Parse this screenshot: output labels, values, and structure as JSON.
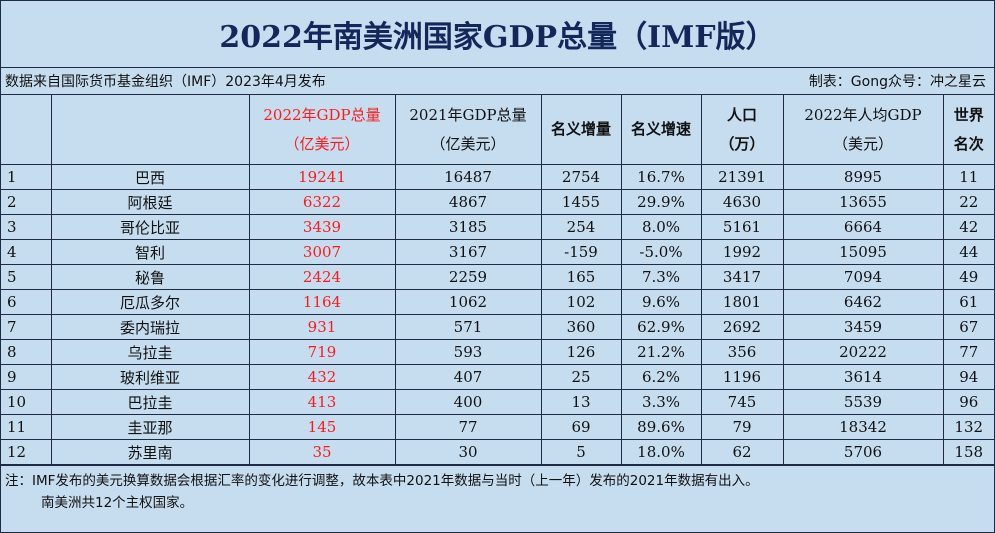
{
  "title": "2022年南美洲国家GDP总量（IMF版）",
  "source_left": "数据来自国际货币基金组织（IMF）2023年4月发布",
  "source_right": "制表：Gong众号：冲之星云",
  "headers": {
    "idx": "",
    "country": "",
    "gdp2022_l1": "2022年GDP总量",
    "gdp2022_l2": "（亿美元）",
    "gdp2021_l1": "2021年GDP总量",
    "gdp2021_l2": "（亿美元）",
    "nominal_increase": "名义增量",
    "nominal_growth": "名义增速",
    "population_l1": "人口",
    "population_l2": "（万）",
    "per_capita_l1": "2022年人均GDP",
    "per_capita_l2": "（美元）",
    "world_rank_l1": "世界",
    "world_rank_l2": "名次"
  },
  "rows": [
    {
      "idx": "1",
      "country": "巴西",
      "gdp2022": "19241",
      "gdp2021": "16487",
      "increase": "2754",
      "growth": "16.7%",
      "population": "21391",
      "per_capita": "8995",
      "rank": "11"
    },
    {
      "idx": "2",
      "country": "阿根廷",
      "gdp2022": "6322",
      "gdp2021": "4867",
      "increase": "1455",
      "growth": "29.9%",
      "population": "4630",
      "per_capita": "13655",
      "rank": "22"
    },
    {
      "idx": "3",
      "country": "哥伦比亚",
      "gdp2022": "3439",
      "gdp2021": "3185",
      "increase": "254",
      "growth": "8.0%",
      "population": "5161",
      "per_capita": "6664",
      "rank": "42"
    },
    {
      "idx": "4",
      "country": "智利",
      "gdp2022": "3007",
      "gdp2021": "3167",
      "increase": "-159",
      "growth": "-5.0%",
      "population": "1992",
      "per_capita": "15095",
      "rank": "44"
    },
    {
      "idx": "5",
      "country": "秘鲁",
      "gdp2022": "2424",
      "gdp2021": "2259",
      "increase": "165",
      "growth": "7.3%",
      "population": "3417",
      "per_capita": "7094",
      "rank": "49"
    },
    {
      "idx": "6",
      "country": "厄瓜多尔",
      "gdp2022": "1164",
      "gdp2021": "1062",
      "increase": "102",
      "growth": "9.6%",
      "population": "1801",
      "per_capita": "6462",
      "rank": "61"
    },
    {
      "idx": "7",
      "country": "委内瑞拉",
      "gdp2022": "931",
      "gdp2021": "571",
      "increase": "360",
      "growth": "62.9%",
      "population": "2692",
      "per_capita": "3459",
      "rank": "67"
    },
    {
      "idx": "8",
      "country": "乌拉圭",
      "gdp2022": "719",
      "gdp2021": "593",
      "increase": "126",
      "growth": "21.2%",
      "population": "356",
      "per_capita": "20222",
      "rank": "77"
    },
    {
      "idx": "9",
      "country": "玻利维亚",
      "gdp2022": "432",
      "gdp2021": "407",
      "increase": "25",
      "growth": "6.2%",
      "population": "1196",
      "per_capita": "3614",
      "rank": "94"
    },
    {
      "idx": "10",
      "country": "巴拉圭",
      "gdp2022": "413",
      "gdp2021": "400",
      "increase": "13",
      "growth": "3.3%",
      "population": "745",
      "per_capita": "5539",
      "rank": "96"
    },
    {
      "idx": "11",
      "country": "圭亚那",
      "gdp2022": "145",
      "gdp2021": "77",
      "increase": "69",
      "growth": "89.6%",
      "population": "79",
      "per_capita": "18342",
      "rank": "132"
    },
    {
      "idx": "12",
      "country": "苏里南",
      "gdp2022": "35",
      "gdp2021": "30",
      "increase": "5",
      "growth": "18.0%",
      "population": "62",
      "per_capita": "5706",
      "rank": "158"
    }
  ],
  "notes": {
    "line1": "注：IMF发布的美元换算数据会根据汇率的变化进行调整，故本表中2021年数据与当时（上一年）发布的2021年数据有出入。",
    "line2": "南美洲共12个主权国家。"
  },
  "colors": {
    "background": "#c6ddf0",
    "title": "#13275a",
    "highlight": "#ff1a1a",
    "grid": "#1f2a44"
  }
}
